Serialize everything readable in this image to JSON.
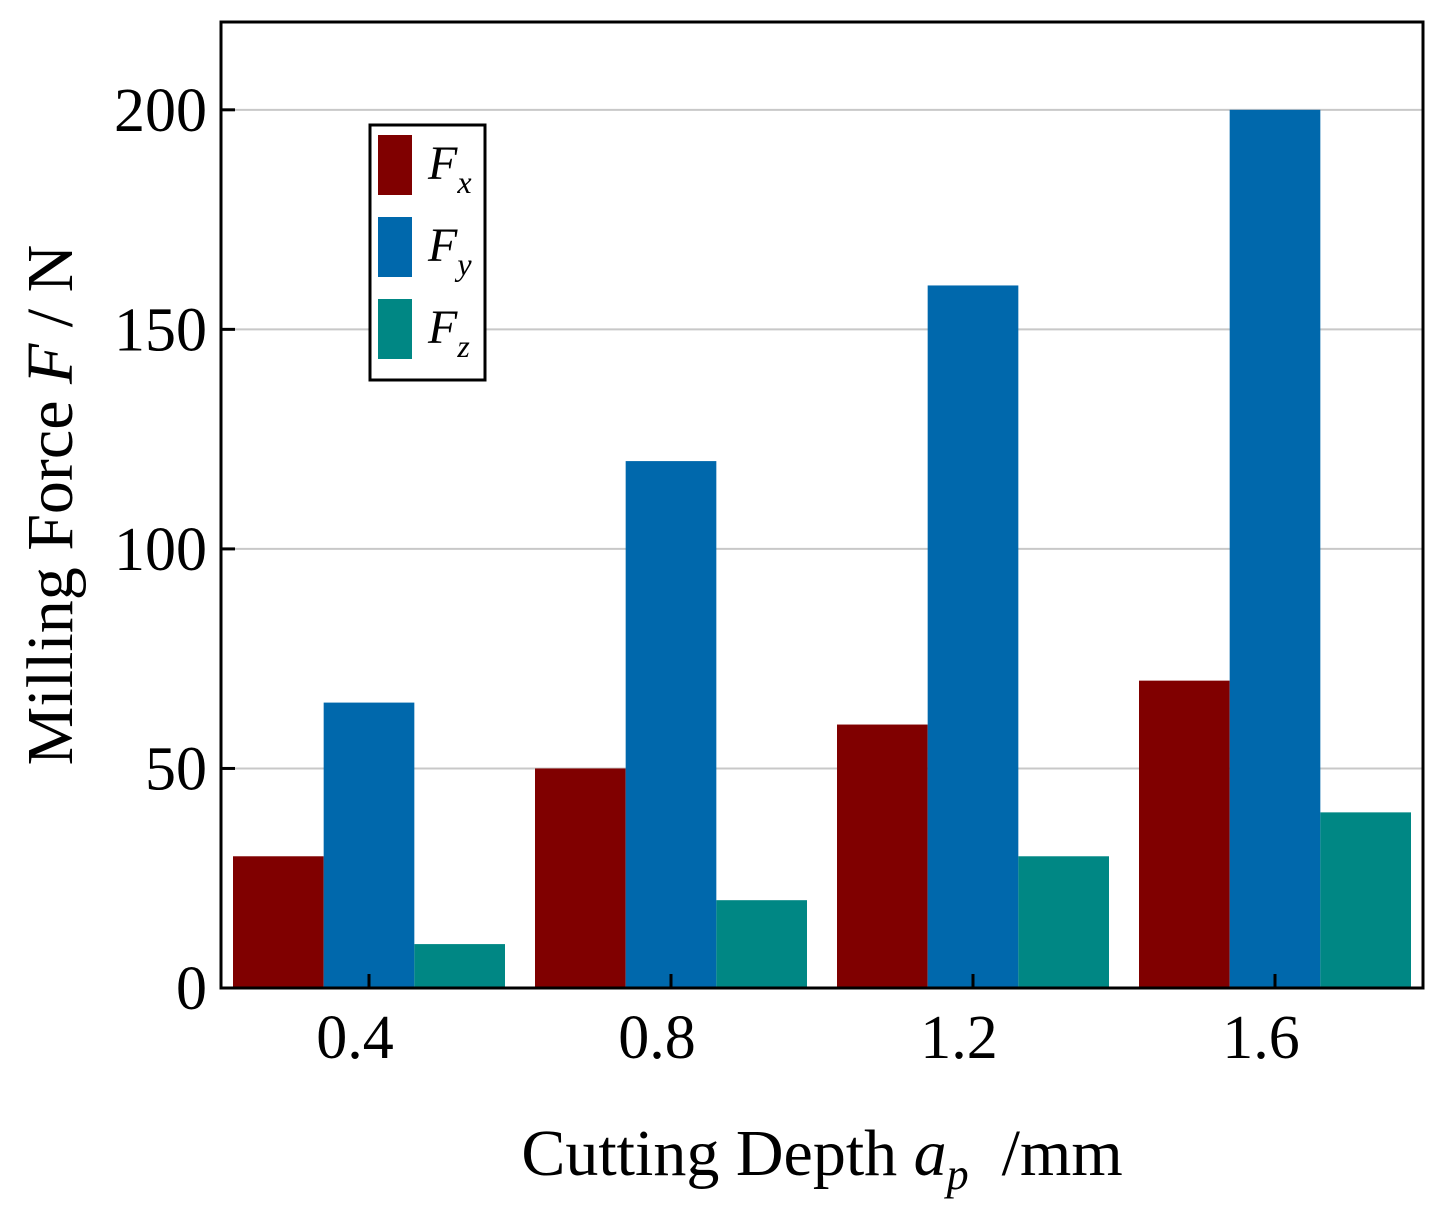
{
  "chart_data": {
    "type": "bar",
    "categories": [
      "0.4",
      "0.8",
      "1.2",
      "1.6"
    ],
    "series": [
      {
        "name": "F",
        "subscript": "x",
        "color": "#800000",
        "values": [
          30,
          50,
          60,
          70
        ]
      },
      {
        "name": "F",
        "subscript": "y",
        "color": "#0068AC",
        "values": [
          65,
          120,
          160,
          200
        ]
      },
      {
        "name": "F",
        "subscript": "z",
        "color": "#008784",
        "values": [
          10,
          20,
          30,
          40
        ]
      }
    ],
    "xlabel": {
      "prefix": "Cutting Depth ",
      "var": "a",
      "sub": "p",
      "suffix": "  /mm"
    },
    "ylabel": {
      "prefix": "Milling Force ",
      "var": "F",
      "suffix": " / N"
    },
    "ylim": [
      0,
      220
    ],
    "yticks": [
      0,
      50,
      100,
      150,
      200
    ],
    "ytick_labels": [
      "0",
      "50",
      "100",
      "150",
      "200"
    ],
    "grid": "horizontal",
    "legend_position": "top-left"
  }
}
